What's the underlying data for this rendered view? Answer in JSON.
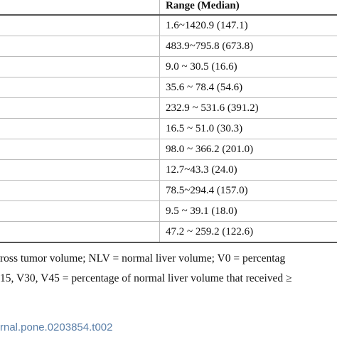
{
  "table": {
    "header": "Range (Median)",
    "rows": [
      "1.6~1420.9 (147.1)",
      "483.9~795.8 (673.8)",
      "9.0 ~ 30.5 (16.6)",
      "35.6 ~ 78.4 (54.6)",
      "232.9 ~ 531.6 (391.2)",
      "16.5 ~ 51.0 (30.3)",
      "98.0 ~ 366.2 (201.0)",
      "12.7~43.3 (24.0)",
      "78.5~294.4 (157.0)",
      "9.5 ~ 39.1 (18.0)",
      "47.2 ~ 259.2 (122.6)"
    ]
  },
  "footnotes": [
    "ross tumor volume; NLV = normal liver volume; V0 = percentag",
    "15, V30, V45 = percentage of normal liver volume that received ≥"
  ],
  "doi": "rnal.pone.0203854.t002"
}
